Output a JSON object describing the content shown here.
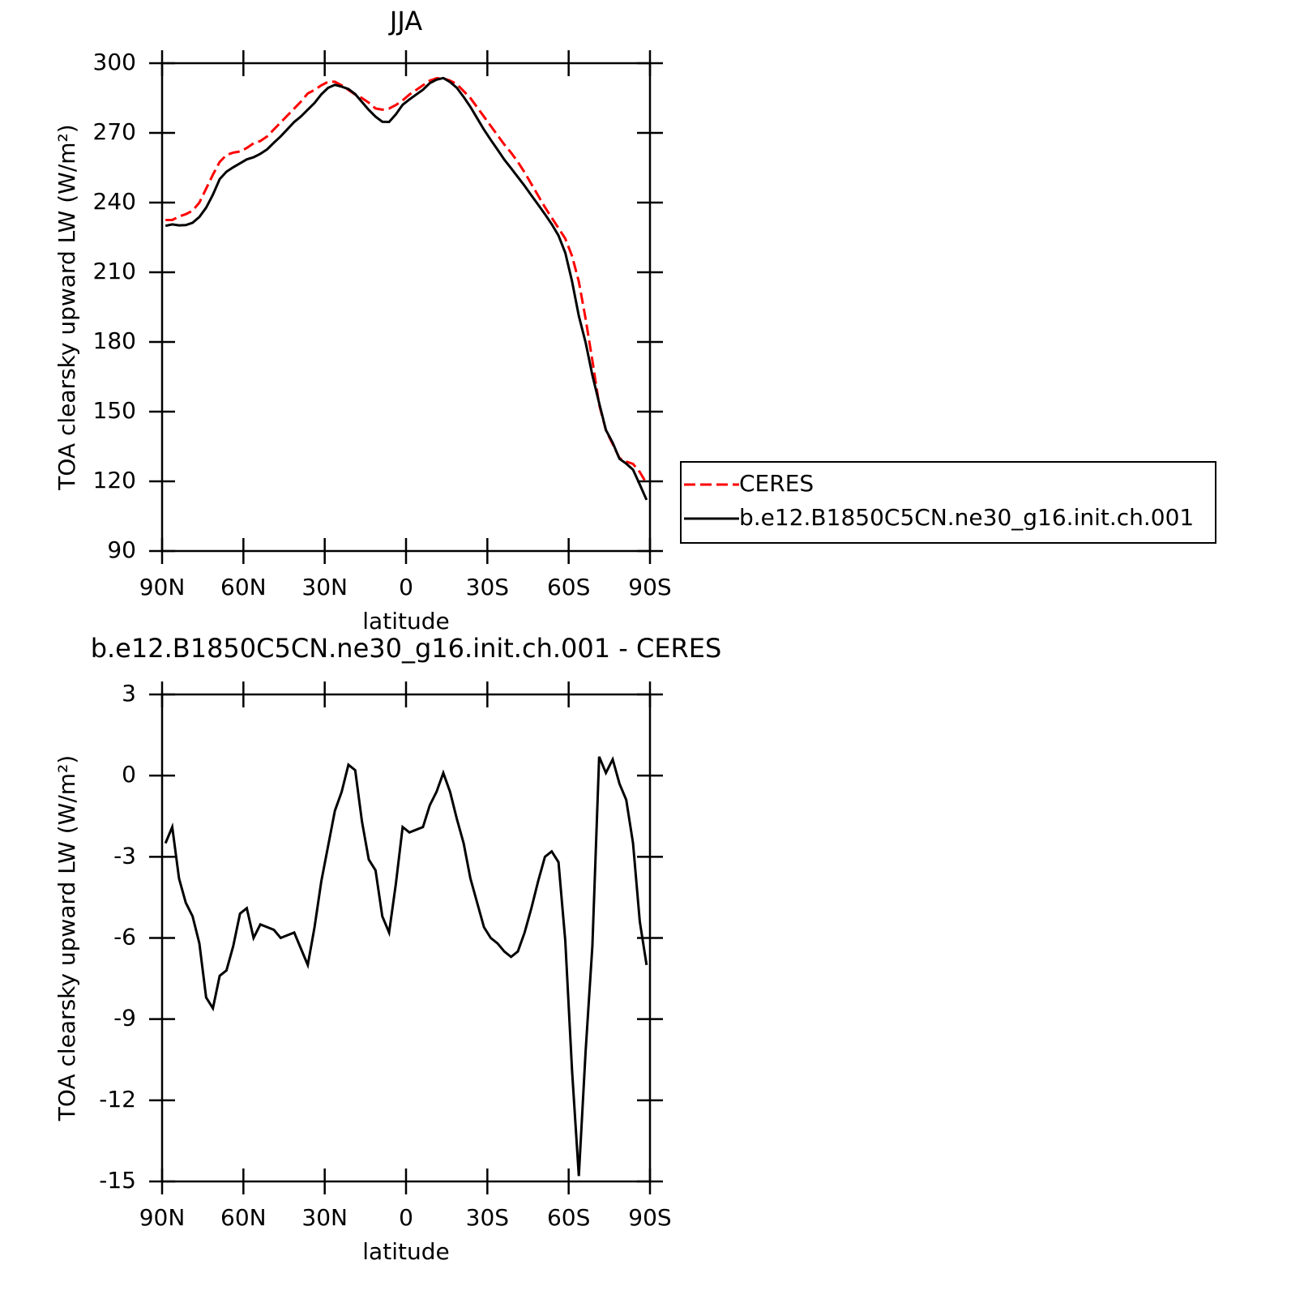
{
  "chart_data": [
    {
      "type": "line",
      "title": "JJA",
      "xlabel": "latitude",
      "ylabel": "TOA clearsky upward LW (W/m²)",
      "x": [
        88.75,
        86.25,
        83.75,
        81.25,
        78.75,
        76.25,
        73.75,
        71.25,
        68.75,
        66.25,
        63.75,
        61.25,
        58.75,
        56.25,
        53.75,
        51.25,
        48.75,
        46.25,
        43.75,
        41.25,
        38.75,
        36.25,
        33.75,
        31.25,
        28.75,
        26.25,
        23.75,
        21.25,
        18.75,
        16.25,
        13.75,
        11.25,
        8.75,
        6.25,
        3.75,
        1.25,
        -1.25,
        -3.75,
        -6.25,
        -8.75,
        -11.25,
        -13.75,
        -16.25,
        -18.75,
        -21.25,
        -23.75,
        -26.25,
        -28.75,
        -31.25,
        -33.75,
        -36.25,
        -38.75,
        -41.25,
        -43.75,
        -46.25,
        -48.75,
        -51.25,
        -53.75,
        -56.25,
        -58.75,
        -61.25,
        -63.75,
        -66.25,
        -68.75,
        -71.25,
        -73.75,
        -76.25,
        -78.75,
        -81.25,
        -83.75,
        -86.25,
        -88.75
      ],
      "xlim": [
        90,
        -90
      ],
      "xticks": [
        {
          "value": 90,
          "label": "90N"
        },
        {
          "value": 60,
          "label": "60N"
        },
        {
          "value": 30,
          "label": "30N"
        },
        0,
        {
          "value": -30,
          "label": "30S"
        },
        {
          "value": -60,
          "label": "60S"
        },
        {
          "value": -90,
          "label": "90S"
        }
      ],
      "ylim": [
        90,
        300
      ],
      "yticks": [
        90,
        120,
        150,
        180,
        210,
        240,
        270,
        300
      ],
      "legend": "right",
      "series": [
        {
          "name": "CERES",
          "color": "#ff0000",
          "dash": true,
          "values": [
            232.5,
            232.5,
            234,
            235,
            236.5,
            240,
            246,
            252,
            257.5,
            260.5,
            261.5,
            262,
            263.5,
            265.5,
            266.5,
            268.5,
            271.5,
            274.5,
            277.5,
            280.5,
            283.5,
            287,
            288.5,
            290.5,
            292,
            292,
            290.5,
            288.5,
            286.5,
            285,
            283,
            280.5,
            280,
            280.5,
            282,
            284,
            286.5,
            288.5,
            290.5,
            292.5,
            293.5,
            293.5,
            292.5,
            291,
            288,
            285,
            281,
            277,
            273,
            269,
            265,
            261.5,
            257.5,
            253,
            248,
            243,
            238,
            233.5,
            229,
            224.5,
            217,
            206,
            190,
            172,
            153,
            142,
            136,
            130,
            128.5,
            127.5,
            124,
            119
          ]
        },
        {
          "name": "b.e12.B1850C5CN.ne30_g16.init.ch.001",
          "color": "#000000",
          "dash": false,
          "values": [
            230.0,
            230.6,
            230.2,
            230.3,
            231.3,
            233.8,
            237.8,
            243.4,
            250.1,
            253.3,
            255.2,
            256.9,
            258.6,
            259.5,
            261.0,
            262.9,
            265.8,
            268.5,
            271.6,
            274.7,
            277.1,
            280.0,
            282.9,
            286.6,
            289.4,
            290.7,
            289.9,
            288.9,
            286.7,
            283.3,
            279.9,
            277.0,
            274.8,
            274.7,
            278.0,
            282.1,
            284.4,
            286.5,
            288.6,
            291.4,
            292.9,
            293.6,
            291.9,
            289.4,
            285.5,
            281.2,
            276.3,
            271.4,
            267.0,
            262.8,
            258.5,
            254.8,
            251.0,
            247.2,
            243.1,
            239.1,
            235.0,
            230.7,
            225.8,
            218.4,
            206.1,
            191.2,
            179.8,
            165.7,
            153.7,
            142.1,
            136.6,
            129.7,
            127.6,
            125.0,
            118.6,
            112.0
          ]
        }
      ]
    },
    {
      "type": "line",
      "title": "b.e12.B1850C5CN.ne30_g16.init.ch.001 - CERES",
      "xlabel": "latitude",
      "ylabel": "TOA clearsky upward LW (W/m²)",
      "x": [
        88.75,
        86.25,
        83.75,
        81.25,
        78.75,
        76.25,
        73.75,
        71.25,
        68.75,
        66.25,
        63.75,
        61.25,
        58.75,
        56.25,
        53.75,
        51.25,
        48.75,
        46.25,
        43.75,
        41.25,
        38.75,
        36.25,
        33.75,
        31.25,
        28.75,
        26.25,
        23.75,
        21.25,
        18.75,
        16.25,
        13.75,
        11.25,
        8.75,
        6.25,
        3.75,
        1.25,
        -1.25,
        -3.75,
        -6.25,
        -8.75,
        -11.25,
        -13.75,
        -16.25,
        -18.75,
        -21.25,
        -23.75,
        -26.25,
        -28.75,
        -31.25,
        -33.75,
        -36.25,
        -38.75,
        -41.25,
        -43.75,
        -46.25,
        -48.75,
        -51.25,
        -53.75,
        -56.25,
        -58.75,
        -61.25,
        -63.75,
        -66.25,
        -68.75,
        -71.25,
        -73.75,
        -76.25,
        -78.75,
        -81.25,
        -83.75,
        -86.25,
        -88.75
      ],
      "xlim": [
        90,
        -90
      ],
      "xticks": [
        {
          "value": 90,
          "label": "90N"
        },
        {
          "value": 60,
          "label": "60N"
        },
        {
          "value": 30,
          "label": "30N"
        },
        0,
        {
          "value": -30,
          "label": "30S"
        },
        {
          "value": -60,
          "label": "60S"
        },
        {
          "value": -90,
          "label": "90S"
        }
      ],
      "ylim": [
        -15,
        3
      ],
      "yticks": [
        -15,
        -12,
        -9,
        -6,
        -3,
        0,
        3
      ],
      "series": [
        {
          "color": "#000000",
          "dash": false,
          "values": [
            -2.5,
            -1.9,
            -3.8,
            -4.7,
            -5.2,
            -6.2,
            -8.2,
            -8.6,
            -7.4,
            -7.2,
            -6.3,
            -5.1,
            -4.9,
            -6.0,
            -5.5,
            -5.6,
            -5.7,
            -6.0,
            -5.9,
            -5.8,
            -6.4,
            -7.0,
            -5.6,
            -3.9,
            -2.6,
            -1.3,
            -0.6,
            0.4,
            0.2,
            -1.7,
            -3.1,
            -3.5,
            -5.2,
            -5.8,
            -4.0,
            -1.9,
            -2.1,
            -2.0,
            -1.9,
            -1.1,
            -0.6,
            0.1,
            -0.6,
            -1.6,
            -2.5,
            -3.8,
            -4.7,
            -5.6,
            -6.0,
            -6.2,
            -6.5,
            -6.7,
            -6.5,
            -5.8,
            -4.9,
            -3.9,
            -3.0,
            -2.8,
            -3.2,
            -6.1,
            -10.9,
            -14.8,
            -10.2,
            -6.3,
            0.7,
            0.1,
            0.6,
            -0.3,
            -0.9,
            -2.5,
            -5.4,
            -7.0
          ]
        }
      ]
    }
  ]
}
